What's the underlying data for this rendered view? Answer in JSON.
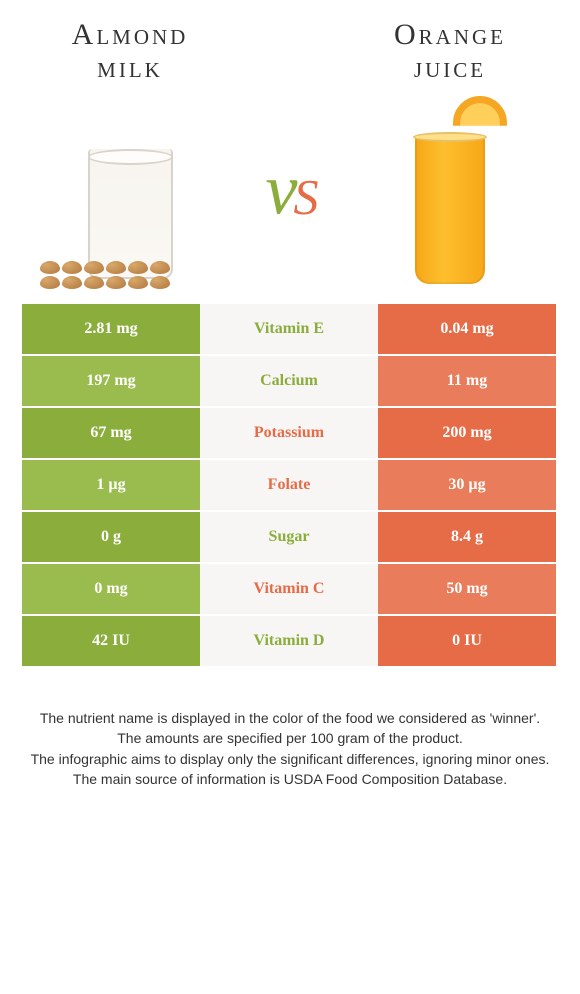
{
  "colors": {
    "green": "#8aad3c",
    "green_alt": "#9abb4d",
    "orange": "#e66b47",
    "orange_alt": "#e97c5a",
    "mid_bg": "#f7f6f5",
    "text_dark": "#333333"
  },
  "header": {
    "left_title_line1": "Almond",
    "left_title_line2": "milk",
    "right_title_line1": "Orange",
    "right_title_line2": "juice",
    "vs_v": "v",
    "vs_s": "s"
  },
  "rows": [
    {
      "nutrient": "Vitamin E",
      "left": "2.81 mg",
      "right": "0.04 mg",
      "winner": "left"
    },
    {
      "nutrient": "Calcium",
      "left": "197 mg",
      "right": "11 mg",
      "winner": "left"
    },
    {
      "nutrient": "Potassium",
      "left": "67 mg",
      "right": "200 mg",
      "winner": "right"
    },
    {
      "nutrient": "Folate",
      "left": "1 µg",
      "right": "30 µg",
      "winner": "right"
    },
    {
      "nutrient": "Sugar",
      "left": "0 g",
      "right": "8.4 g",
      "winner": "left"
    },
    {
      "nutrient": "Vitamin C",
      "left": "0 mg",
      "right": "50 mg",
      "winner": "right"
    },
    {
      "nutrient": "Vitamin D",
      "left": "42 IU",
      "right": "0 IU",
      "winner": "left"
    }
  ],
  "footer": {
    "line1": "The nutrient name is displayed in the color of the food we considered as 'winner'.",
    "line2": "The amounts are specified per 100 gram of the product.",
    "line3": "The infographic aims to display only the significant differences, ignoring minor ones.",
    "line4": "The main source of information is USDA Food Composition Database."
  }
}
